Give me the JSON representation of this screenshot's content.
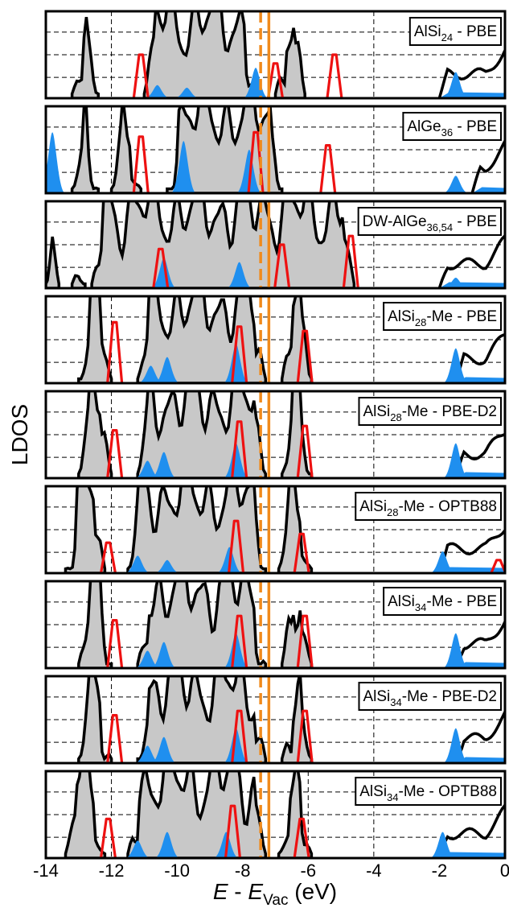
{
  "chart_data": {
    "type": "area",
    "title": "",
    "xlabel_parts": {
      "main": "E",
      "dash": " - ",
      "sym": "E",
      "sub": "Vac",
      "unit": " (eV)"
    },
    "ylabel": "LDOS",
    "xlim": [
      -14,
      0
    ],
    "xticks": [
      -14,
      -12,
      -10,
      -8,
      -6,
      -4,
      -2,
      0
    ],
    "xtick_labels": [
      "-14",
      "-12",
      "-10",
      "-8",
      "-6",
      "-4",
      "-2",
      "0"
    ],
    "reference_lines": [
      {
        "x": -7.45,
        "style": "dashed",
        "color": "#f08a1c"
      },
      {
        "x": -7.2,
        "style": "solid",
        "color": "#f08a1c"
      }
    ],
    "series_colors": {
      "total": "#000000",
      "total_fill": "#c8c8c8",
      "red": "#ee1111",
      "blue": "#1f8fef"
    },
    "grid": true,
    "legend_placement": "top-right",
    "panels": [
      {
        "label": {
          "pre": "AlSi",
          "sub": "24",
          "post": " - PBE"
        },
        "lumo": -2.0,
        "homo": -6.2,
        "grid_x": [
          -12,
          -4
        ],
        "bands": [
          [
            -13.2,
            -12.4
          ],
          [
            -11.0,
            -7.6
          ],
          [
            -7.0,
            -6.1
          ]
        ],
        "red_peaks": [
          [
            -11.1,
            0.5
          ],
          [
            -7.0,
            0.4
          ],
          [
            -5.2,
            0.5
          ]
        ],
        "blue_peaks": [
          [
            -10.6,
            0.15
          ],
          [
            -9.7,
            0.12
          ],
          [
            -7.6,
            0.35
          ],
          [
            -1.5,
            0.3
          ]
        ]
      },
      {
        "label": {
          "pre": "AlGe",
          "sub": "36",
          "post": " - PBE"
        },
        "lumo": -1.0,
        "homo": -6.1,
        "grid_x": [
          -12,
          -4
        ],
        "bands": [
          [
            -13.2,
            -12.4
          ],
          [
            -12.0,
            -11.1
          ],
          [
            -10.3,
            -6.8
          ]
        ],
        "red_peaks": [
          [
            -11.1,
            0.65
          ],
          [
            -7.6,
            0.7
          ],
          [
            -5.4,
            0.55
          ]
        ],
        "blue_peaks": [
          [
            -13.8,
            0.7
          ],
          [
            -9.8,
            0.6
          ],
          [
            -7.8,
            0.5
          ],
          [
            -1.5,
            0.2
          ]
        ]
      },
      {
        "label": {
          "pre": "DW-AlGe",
          "sub": "36,54",
          "post": " - PBE"
        },
        "lumo": -2.0,
        "homo": -4.6,
        "grid_x": [
          -12,
          -4
        ],
        "bands": [
          [
            -14.0,
            -13.6
          ],
          [
            -13.2,
            -12.8
          ],
          [
            -12.6,
            -4.6
          ]
        ],
        "red_peaks": [
          [
            -10.5,
            0.45
          ],
          [
            -6.8,
            0.5
          ],
          [
            -4.7,
            0.6
          ]
        ],
        "blue_peaks": [
          [
            -10.4,
            0.35
          ],
          [
            -8.1,
            0.3
          ],
          [
            -1.5,
            0.12
          ]
        ]
      },
      {
        "label": {
          "pre": "AlSi",
          "sub": "28",
          "post": "-Me - PBE"
        },
        "lumo": -1.5,
        "homo": -5.9,
        "grid_x": [
          -12,
          -4
        ],
        "bands": [
          [
            -13.0,
            -12.0
          ],
          [
            -11.2,
            -7.3
          ],
          [
            -6.8,
            -5.9
          ]
        ],
        "red_peaks": [
          [
            -11.9,
            0.7
          ],
          [
            -8.1,
            0.65
          ],
          [
            -6.1,
            0.6
          ]
        ],
        "blue_peaks": [
          [
            -10.8,
            0.2
          ],
          [
            -10.3,
            0.3
          ],
          [
            -8.2,
            0.45
          ],
          [
            -1.5,
            0.4
          ]
        ]
      },
      {
        "label": {
          "pre": "AlSi",
          "sub": "28",
          "post": "-Me - PBE-D2"
        },
        "lumo": -1.5,
        "homo": -5.9,
        "grid_x": [
          -12,
          -4
        ],
        "bands": [
          [
            -13.0,
            -12.0
          ],
          [
            -11.2,
            -7.3
          ],
          [
            -6.8,
            -5.9
          ]
        ],
        "red_peaks": [
          [
            -11.9,
            0.55
          ],
          [
            -8.1,
            0.65
          ],
          [
            -6.1,
            0.6
          ]
        ],
        "blue_peaks": [
          [
            -10.9,
            0.2
          ],
          [
            -10.4,
            0.3
          ],
          [
            -8.2,
            0.4
          ],
          [
            -1.5,
            0.4
          ]
        ]
      },
      {
        "label": {
          "pre": "AlSi",
          "sub": "28",
          "post": "-Me - OPTB88"
        },
        "lumo": -2.0,
        "homo": -5.9,
        "grid_x": [
          -12,
          -4
        ],
        "bands": [
          [
            -13.4,
            -12.2
          ],
          [
            -11.5,
            -7.3
          ],
          [
            -6.9,
            -5.9
          ]
        ],
        "red_peaks": [
          [
            -12.1,
            0.35
          ],
          [
            -8.2,
            0.6
          ],
          [
            -6.2,
            0.45
          ],
          [
            -0.2,
            0.15
          ]
        ],
        "blue_peaks": [
          [
            -11.2,
            0.2
          ],
          [
            -10.3,
            0.15
          ],
          [
            -8.4,
            0.3
          ],
          [
            -1.9,
            0.25
          ]
        ]
      },
      {
        "label": {
          "pre": "AlSi",
          "sub": "34",
          "post": "-Me - PBE"
        },
        "lumo": -1.5,
        "homo": -5.9,
        "grid_x": [
          -12,
          -4
        ],
        "bands": [
          [
            -13.0,
            -12.0
          ],
          [
            -11.2,
            -7.3
          ],
          [
            -6.8,
            -5.9
          ]
        ],
        "red_peaks": [
          [
            -11.9,
            0.55
          ],
          [
            -8.1,
            0.6
          ],
          [
            -6.1,
            0.6
          ]
        ],
        "blue_peaks": [
          [
            -10.9,
            0.2
          ],
          [
            -10.4,
            0.3
          ],
          [
            -8.2,
            0.4
          ],
          [
            -1.5,
            0.4
          ]
        ]
      },
      {
        "label": {
          "pre": "AlSi",
          "sub": "34",
          "post": "-Me - PBE-D2"
        },
        "lumo": -1.5,
        "homo": -5.9,
        "grid_x": [
          -12,
          -4
        ],
        "bands": [
          [
            -13.0,
            -12.0
          ],
          [
            -11.2,
            -7.3
          ],
          [
            -6.8,
            -5.9
          ]
        ],
        "red_peaks": [
          [
            -11.9,
            0.55
          ],
          [
            -8.1,
            0.6
          ],
          [
            -6.1,
            0.6
          ]
        ],
        "blue_peaks": [
          [
            -10.9,
            0.2
          ],
          [
            -10.4,
            0.3
          ],
          [
            -8.2,
            0.4
          ],
          [
            -1.5,
            0.4
          ]
        ]
      },
      {
        "label": {
          "pre": "AlSi",
          "sub": "34",
          "post": "-Me - OPTB88"
        },
        "lumo": -2.0,
        "homo": -5.9,
        "grid_x": [
          -12,
          -6,
          -4
        ],
        "bands": [
          [
            -13.4,
            -12.2
          ],
          [
            -11.5,
            -7.3
          ],
          [
            -6.9,
            -5.9
          ]
        ],
        "red_peaks": [
          [
            -12.1,
            0.45
          ],
          [
            -8.3,
            0.6
          ],
          [
            -6.2,
            0.45
          ]
        ],
        "blue_peaks": [
          [
            -11.2,
            0.2
          ],
          [
            -10.3,
            0.3
          ],
          [
            -8.5,
            0.3
          ],
          [
            -1.9,
            0.3
          ]
        ]
      }
    ]
  }
}
